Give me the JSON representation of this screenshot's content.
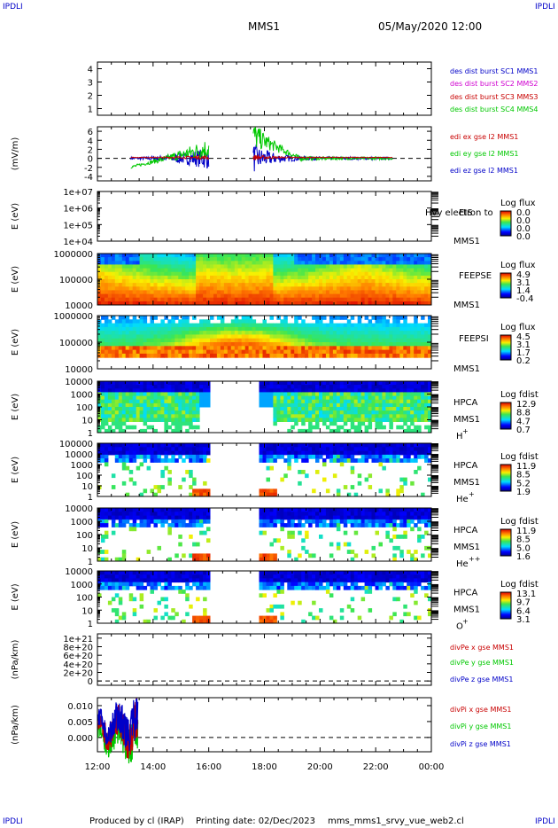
{
  "corner_tags": {
    "top_left": "IPDLI",
    "top_right": "IPDLI",
    "bottom_left": "IPDLI",
    "bottom_right": "IPDLI"
  },
  "header": {
    "left": "MMS1",
    "right": "05/May/2020 12:00"
  },
  "footer": {
    "producer": "Produced by cl (IRAP)",
    "printing": "Printing date: 02/Dec/2023",
    "script": "mms_mms1_srvy_vue_web2.cl"
  },
  "time_axis": {
    "ticks": [
      "12:00",
      "14:00",
      "16:00",
      "18:00",
      "20:00",
      "22:00",
      "00:00"
    ]
  },
  "chart_data": [
    {
      "type": "line",
      "panel": "des-dist-burst",
      "yticks": [
        "4",
        "3",
        "2",
        "1"
      ],
      "ylim": [
        0.5,
        4.5
      ],
      "legend": [
        {
          "name": "des dist burst SC1 MMS1",
          "color": "#0000c8"
        },
        {
          "name": "des dist burst SC2 MMS2",
          "color": "#d000d0"
        },
        {
          "name": "des dist burst SC3 MMS3",
          "color": "#c80000"
        },
        {
          "name": "des dist burst SC4 MMS4",
          "color": "#00c800"
        }
      ]
    },
    {
      "type": "line",
      "panel": "edi-e",
      "ylabel": "(mV/m)",
      "yticks": [
        "6",
        "4",
        "2",
        "0",
        "-2",
        "-4"
      ],
      "ylim": [
        -5,
        7
      ],
      "legend": [
        {
          "name": "edi ex gse l2 MMS1",
          "color": "#c80000"
        },
        {
          "name": "edi ey gse l2 MMS1",
          "color": "#00c800"
        },
        {
          "name": "edi ez gse l2 MMS1",
          "color": "#0000c8"
        }
      ]
    },
    {
      "type": "heatmap",
      "panel": "eis",
      "ylabel": "E (eV)",
      "yticks": [
        "1e+07",
        "1e+06",
        "1e+05",
        "1e+04"
      ],
      "side_labels": [
        "EIS",
        "MMS1"
      ],
      "overlay_text": "Hvy electron to",
      "cbar_title": "Log flux",
      "cbar_ticks": [
        "0.0",
        "0.0",
        "0.0",
        "0.0"
      ]
    },
    {
      "type": "heatmap",
      "panel": "feepse",
      "ylabel": "E (eV)",
      "yticks": [
        "1000000",
        "100000",
        "10000"
      ],
      "side_labels": [
        "FEEPSE",
        "MMS1"
      ],
      "cbar_title": "Log flux",
      "cbar_ticks": [
        "4.9",
        "3.1",
        "1.4",
        "-0.4"
      ]
    },
    {
      "type": "heatmap",
      "panel": "feepsi",
      "ylabel": "E (eV)",
      "yticks": [
        "1000000",
        "100000",
        "10000"
      ],
      "side_labels": [
        "FEEPSI",
        "MMS1"
      ],
      "cbar_title": "Log flux",
      "cbar_ticks": [
        "4.5",
        "3.1",
        "1.7",
        "0.2"
      ]
    },
    {
      "type": "heatmap",
      "panel": "hpca-h",
      "ylabel": "E (eV)",
      "yticks": [
        "10000",
        "1000",
        "100",
        "10",
        "1"
      ],
      "side_labels": [
        "HPCA",
        "MMS1"
      ],
      "species": "H",
      "species_sup": "+",
      "cbar_title": "Log fdist",
      "cbar_ticks": [
        "12.9",
        "8.8",
        "4.7",
        "0.7"
      ]
    },
    {
      "type": "heatmap",
      "panel": "hpca-he",
      "ylabel": "E (eV)",
      "yticks": [
        "100000",
        "10000",
        "1000",
        "100",
        "10",
        "1"
      ],
      "side_labels": [
        "HPCA",
        "MMS1"
      ],
      "species": "He",
      "species_sup": "+",
      "cbar_title": "Log fdist",
      "cbar_ticks": [
        "11.9",
        "8.5",
        "5.2",
        "1.9"
      ]
    },
    {
      "type": "heatmap",
      "panel": "hpca-he2",
      "ylabel": "E (eV)",
      "yticks": [
        "10000",
        "1000",
        "100",
        "10",
        "1"
      ],
      "side_labels": [
        "HPCA",
        "MMS1"
      ],
      "species": "He",
      "species_sup": "++",
      "cbar_title": "Log fdist",
      "cbar_ticks": [
        "11.9",
        "8.5",
        "5.0",
        "1.6"
      ]
    },
    {
      "type": "heatmap",
      "panel": "hpca-o",
      "ylabel": "E (eV)",
      "yticks": [
        "10000",
        "1000",
        "100",
        "10",
        "1"
      ],
      "side_labels": [
        "HPCA",
        "MMS1"
      ],
      "species": "O",
      "species_sup": "+",
      "cbar_title": "Log fdist",
      "cbar_ticks": [
        "13.1",
        "9.7",
        "6.4",
        "3.1"
      ]
    },
    {
      "type": "line",
      "panel": "divpe",
      "ylabel": "(nPa/km)",
      "yticks": [
        "1e+21",
        "8e+20",
        "6e+20",
        "4e+20",
        "2e+20",
        "0"
      ],
      "ylim": [
        -1e+20,
        1.1e+21
      ],
      "legend": [
        {
          "name": "divPe x gse MMS1",
          "color": "#c80000"
        },
        {
          "name": "divPe y gse MMS1",
          "color": "#00c800"
        },
        {
          "name": "divPe z gse MMS1",
          "color": "#0000c8"
        }
      ]
    },
    {
      "type": "line",
      "panel": "divpi",
      "ylabel": "(nPa/km)",
      "yticks": [
        "0.010",
        "0.005",
        "0.000"
      ],
      "ylim": [
        -0.0045,
        0.0125
      ],
      "legend": [
        {
          "name": "divPi x gse MMS1",
          "color": "#c80000"
        },
        {
          "name": "divPi y gse MMS1",
          "color": "#00c800"
        },
        {
          "name": "divPi z gse MMS1",
          "color": "#0000c8"
        }
      ]
    }
  ]
}
